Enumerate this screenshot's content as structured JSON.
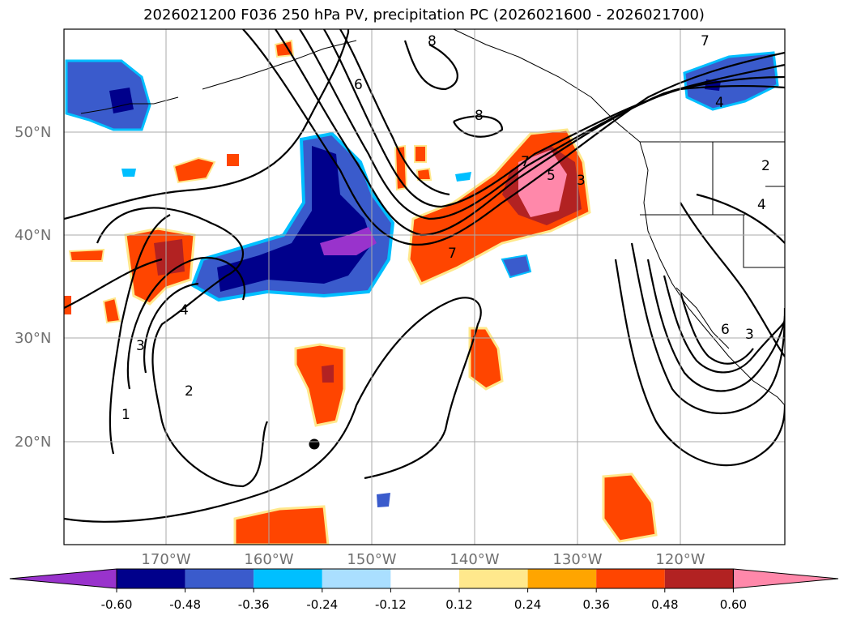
{
  "title": "2026021200 F036 250 hPa PV, precipitation PC (2026021600 - 2026021700)",
  "lat_labels": [
    "50°N",
    "40°N",
    "30°N",
    "20°N"
  ],
  "lon_labels": [
    "170°W",
    "160°W",
    "150°W",
    "140°W",
    "130°W",
    "120°W"
  ],
  "pv_contour_labels": [
    "1",
    "2",
    "3",
    "4",
    "5",
    "6",
    "7",
    "8"
  ],
  "colorbar": {
    "ticks": [
      "-0.60",
      "-0.48",
      "-0.36",
      "-0.24",
      "-0.12",
      "0.12",
      "0.24",
      "0.36",
      "0.48",
      "0.60"
    ],
    "colors": [
      "#9933cc",
      "#00008b",
      "#3a5bcc",
      "#00bfff",
      "#aadfff",
      "#ffffff",
      "#ffe88c",
      "#ffa500",
      "#ff4500",
      "#b22222",
      "#ff88aa"
    ]
  }
}
